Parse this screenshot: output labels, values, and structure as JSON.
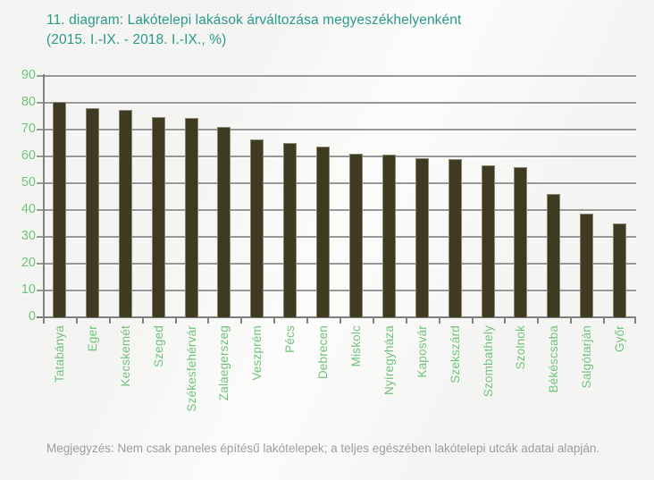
{
  "title": {
    "line1": "11. diagram: Lakótelepi lakások árváltozása megyeszékhelyenként",
    "line2": "(2015. I.-IX. - 2018. I.-IX., %)",
    "color": "#2a9a8a"
  },
  "chart_data": {
    "type": "bar",
    "title": "11. diagram: Lakótelepi lakások árváltozása megyeszékhelyenként (2015. I.-IX. - 2018. I.-IX., %)",
    "categories": [
      "Tatabánya",
      "Eger",
      "Kecskemét",
      "Szeged",
      "Székesfehérvár",
      "Zalaegerszeg",
      "Veszprém",
      "Pécs",
      "Debrecen",
      "Miskolc",
      "Nyíregyháza",
      "Kaposvár",
      "Szekszárd",
      "Szombathely",
      "Szolnok",
      "Békéscsaba",
      "Salgótarján",
      "Győr"
    ],
    "values": [
      80.2,
      78.0,
      77.3,
      74.6,
      74.2,
      71.1,
      66.4,
      65.0,
      63.7,
      61.0,
      60.7,
      59.3,
      58.9,
      56.6,
      56.1,
      46.1,
      38.8,
      35.1
    ],
    "xlabel": "",
    "ylabel": "",
    "ylim": [
      0,
      90
    ],
    "yticks": [
      0,
      10,
      20,
      30,
      40,
      50,
      60,
      70,
      80,
      90
    ],
    "grid": true,
    "legend": false,
    "bar_color": "#3f3a22",
    "gridline_color": "#979797",
    "tick_label_color": "#6ec277"
  },
  "footnote": {
    "text": "Megjegyzés: Nem csak paneles építésű lakótelepek; a teljes egészében lakótelepi utcák adatai alapján.",
    "color": "#9d9d9d"
  }
}
